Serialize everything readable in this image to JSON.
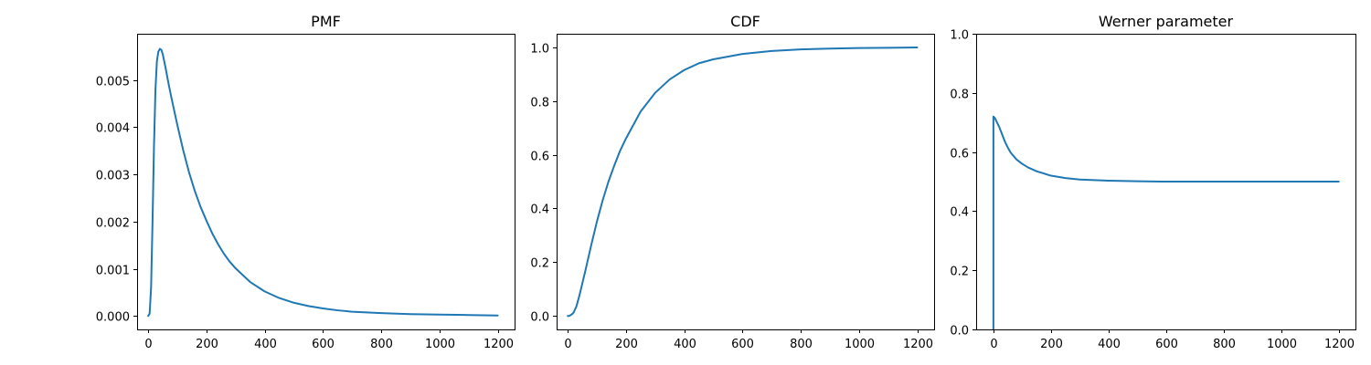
{
  "figure": {
    "line_color": "#1f77b4"
  },
  "chart_data": [
    {
      "type": "line",
      "title": "PMF",
      "xlabel": "",
      "ylabel": "",
      "xlim": [
        -38,
        1258
      ],
      "ylim": [
        -0.000285,
        0.00598
      ],
      "xticks": [
        0,
        200,
        400,
        600,
        800,
        1000,
        1200
      ],
      "xtick_labels": [
        "0",
        "200",
        "400",
        "600",
        "800",
        "1000",
        "1200"
      ],
      "yticks": [
        0,
        0.001,
        0.002,
        0.003,
        0.004,
        0.005
      ],
      "ytick_labels": [
        "0.000",
        "0.001",
        "0.002",
        "0.003",
        "0.004",
        "0.005"
      ],
      "series": [
        {
          "name": "PMF",
          "x": [
            0,
            5,
            10,
            15,
            20,
            25,
            30,
            35,
            40,
            45,
            50,
            60,
            70,
            80,
            100,
            120,
            140,
            160,
            180,
            200,
            220,
            240,
            260,
            280,
            300,
            350,
            400,
            450,
            500,
            550,
            600,
            650,
            700,
            800,
            900,
            1000,
            1100,
            1200
          ],
          "y": [
            0.0,
            5e-05,
            0.0006,
            0.002,
            0.0036,
            0.0048,
            0.0054,
            0.0056,
            0.00566,
            0.00564,
            0.00555,
            0.00525,
            0.00492,
            0.00462,
            0.00405,
            0.00352,
            0.00305,
            0.00265,
            0.00231,
            0.00202,
            0.00175,
            0.00152,
            0.00132,
            0.00115,
            0.00101,
            0.00072,
            0.00052,
            0.00038,
            0.00028,
            0.00021,
            0.00016,
            0.00012,
            9e-05,
            6e-05,
            4e-05,
            3e-05,
            2e-05,
            1e-05
          ]
        }
      ]
    },
    {
      "type": "line",
      "title": "CDF",
      "xlabel": "",
      "ylabel": "",
      "xlim": [
        -38,
        1258
      ],
      "ylim": [
        -0.05,
        1.05
      ],
      "xticks": [
        0,
        200,
        400,
        600,
        800,
        1000,
        1200
      ],
      "xtick_labels": [
        "0",
        "200",
        "400",
        "600",
        "800",
        "1000",
        "1200"
      ],
      "yticks": [
        0,
        0.2,
        0.4,
        0.6,
        0.8,
        1.0
      ],
      "ytick_labels": [
        "0.0",
        "0.2",
        "0.4",
        "0.6",
        "0.8",
        "1.0"
      ],
      "series": [
        {
          "name": "CDF",
          "x": [
            0,
            5,
            10,
            15,
            20,
            30,
            40,
            50,
            60,
            80,
            100,
            120,
            140,
            160,
            180,
            200,
            250,
            300,
            350,
            400,
            450,
            500,
            600,
            700,
            800,
            900,
            1000,
            1100,
            1200
          ],
          "y": [
            0.0,
            0.0,
            0.003,
            0.007,
            0.012,
            0.036,
            0.075,
            0.12,
            0.165,
            0.26,
            0.35,
            0.43,
            0.5,
            0.56,
            0.615,
            0.66,
            0.76,
            0.83,
            0.88,
            0.915,
            0.94,
            0.955,
            0.975,
            0.986,
            0.992,
            0.995,
            0.997,
            0.998,
            0.999
          ]
        }
      ]
    },
    {
      "type": "line",
      "title": "Werner parameter",
      "xlabel": "",
      "ylabel": "",
      "xlim": [
        -60,
        1258
      ],
      "ylim": [
        0.0,
        1.0
      ],
      "xticks": [
        0,
        200,
        400,
        600,
        800,
        1000,
        1200
      ],
      "xtick_labels": [
        "0",
        "200",
        "400",
        "600",
        "800",
        "1000",
        "1200"
      ],
      "yticks": [
        0,
        0.2,
        0.4,
        0.6,
        0.8,
        1.0
      ],
      "ytick_labels": [
        "0.0",
        "0.2",
        "0.4",
        "0.6",
        "0.8",
        "1.0"
      ],
      "series": [
        {
          "name": "Werner parameter",
          "x": [
            0,
            0,
            5,
            10,
            20,
            30,
            40,
            50,
            60,
            80,
            100,
            120,
            150,
            200,
            250,
            300,
            400,
            500,
            600,
            800,
            1000,
            1200
          ],
          "y": [
            0.0,
            0.72,
            0.715,
            0.705,
            0.685,
            0.66,
            0.635,
            0.615,
            0.598,
            0.575,
            0.56,
            0.548,
            0.535,
            0.52,
            0.512,
            0.507,
            0.503,
            0.501,
            0.5,
            0.5,
            0.5,
            0.5
          ]
        }
      ]
    }
  ]
}
